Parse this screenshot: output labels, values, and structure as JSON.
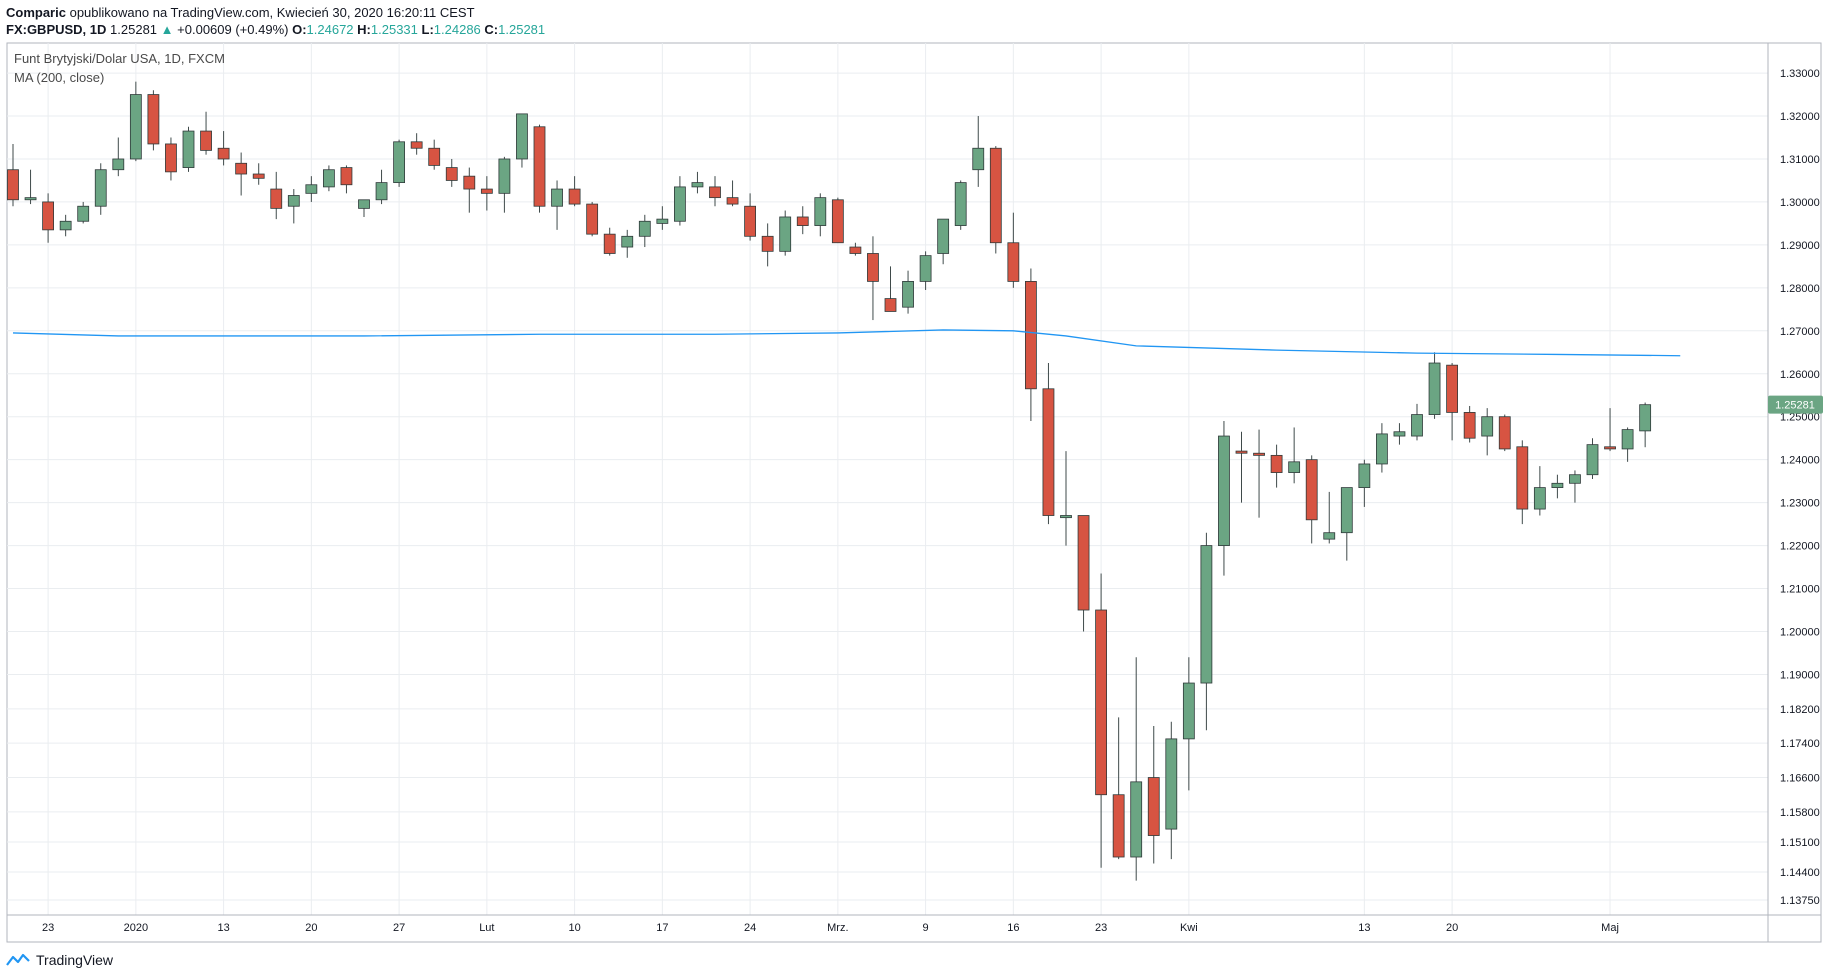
{
  "header": {
    "publisher": "Comparic",
    "published_text": "opublikowano na TradingView.com, Kwiecień 30, 2020 16:20:11 CEST",
    "symbol": "FX:GBPUSD, 1D",
    "last": "1.25281",
    "change_arrow": "▲",
    "change": "+0.00609 (+0.49%)",
    "o_label": "O:",
    "o_value": "1.24672",
    "h_label": "H:",
    "h_value": "1.25331",
    "l_label": "L:",
    "l_value": "1.24286",
    "c_label": "C:",
    "c_value": "1.25281"
  },
  "footer": {
    "brand": "TradingView"
  },
  "colors": {
    "up": "#6ba583",
    "down": "#d75442",
    "ma": "#2196f3",
    "grid": "#eaedf0",
    "price_tag": "#6ba583"
  },
  "chart_data": {
    "type": "candlestick",
    "title": "Funt Brytyjski/Dolar USA, 1D, FXCM",
    "indicator": "MA (200, close)",
    "ylim": [
      1.134,
      1.337
    ],
    "y_ticks": [
      1.33,
      1.32,
      1.31,
      1.3,
      1.29,
      1.28,
      1.27,
      1.26,
      1.25,
      1.24,
      1.23,
      1.22,
      1.21,
      1.2,
      1.19,
      1.182,
      1.174,
      1.166,
      1.158,
      1.151,
      1.144,
      1.1375
    ],
    "y_tick_labels": [
      "1.33000",
      "1.32000",
      "1.31000",
      "1.30000",
      "1.29000",
      "1.28000",
      "1.27000",
      "1.26000",
      "1.25000",
      "1.24000",
      "1.23000",
      "1.22000",
      "1.21000",
      "1.20000",
      "1.19000",
      "1.18200",
      "1.17400",
      "1.16600",
      "1.15800",
      "1.15100",
      "1.14400",
      "1.13750"
    ],
    "x_ticks": [
      {
        "label": "23",
        "index": 2
      },
      {
        "label": "2020",
        "index": 7
      },
      {
        "label": "13",
        "index": 12
      },
      {
        "label": "20",
        "index": 17
      },
      {
        "label": "27",
        "index": 22
      },
      {
        "label": "Lut",
        "index": 27
      },
      {
        "label": "10",
        "index": 32
      },
      {
        "label": "17",
        "index": 37
      },
      {
        "label": "24",
        "index": 42
      },
      {
        "label": "Mrz.",
        "index": 47
      },
      {
        "label": "9",
        "index": 52
      },
      {
        "label": "16",
        "index": 57
      },
      {
        "label": "23",
        "index": 62
      },
      {
        "label": "Kwi",
        "index": 67
      },
      {
        "label": "13",
        "index": 77
      },
      {
        "label": "20",
        "index": 82
      },
      {
        "label": "Maj",
        "index": 91
      }
    ],
    "last_price_label": "1.25281",
    "last_price": 1.25281,
    "candles": [
      [
        1.3075,
        1.3135,
        1.299,
        1.3005
      ],
      [
        1.3005,
        1.3075,
        1.2995,
        1.301
      ],
      [
        1.3,
        1.302,
        1.2905,
        1.2935
      ],
      [
        1.2935,
        1.297,
        1.292,
        1.2955
      ],
      [
        1.2955,
        1.3,
        1.295,
        1.299
      ],
      [
        1.299,
        1.309,
        1.297,
        1.3075
      ],
      [
        1.3075,
        1.315,
        1.306,
        1.31
      ],
      [
        1.31,
        1.328,
        1.3095,
        1.325
      ],
      [
        1.325,
        1.326,
        1.312,
        1.3135
      ],
      [
        1.3135,
        1.315,
        1.305,
        1.307
      ],
      [
        1.308,
        1.3175,
        1.307,
        1.3165
      ],
      [
        1.3165,
        1.321,
        1.311,
        1.312
      ],
      [
        1.3125,
        1.3165,
        1.3085,
        1.31
      ],
      [
        1.309,
        1.3115,
        1.3015,
        1.3065
      ],
      [
        1.3065,
        1.309,
        1.304,
        1.3055
      ],
      [
        1.303,
        1.307,
        1.296,
        1.2985
      ],
      [
        1.299,
        1.303,
        1.295,
        1.3015
      ],
      [
        1.302,
        1.306,
        1.3,
        1.304
      ],
      [
        1.3035,
        1.3085,
        1.3025,
        1.3075
      ],
      [
        1.308,
        1.3085,
        1.302,
        1.304
      ],
      [
        1.2985,
        1.3005,
        1.2965,
        1.3005
      ],
      [
        1.3005,
        1.3075,
        1.2995,
        1.3045
      ],
      [
        1.3045,
        1.3145,
        1.3035,
        1.314
      ],
      [
        1.314,
        1.316,
        1.311,
        1.3125
      ],
      [
        1.3125,
        1.3145,
        1.3075,
        1.3085
      ],
      [
        1.308,
        1.31,
        1.3035,
        1.305
      ],
      [
        1.306,
        1.308,
        1.2975,
        1.303
      ],
      [
        1.303,
        1.306,
        1.298,
        1.302
      ],
      [
        1.302,
        1.3105,
        1.2975,
        1.31
      ],
      [
        1.31,
        1.3205,
        1.308,
        1.3205
      ],
      [
        1.3175,
        1.318,
        1.2975,
        1.299
      ],
      [
        1.299,
        1.305,
        1.2935,
        1.303
      ],
      [
        1.303,
        1.306,
        1.299,
        1.2995
      ],
      [
        1.2995,
        1.3,
        1.292,
        1.2925
      ],
      [
        1.2925,
        1.294,
        1.2875,
        1.288
      ],
      [
        1.2895,
        1.2935,
        1.287,
        1.292
      ],
      [
        1.292,
        1.297,
        1.2895,
        1.2955
      ],
      [
        1.295,
        1.299,
        1.2935,
        1.296
      ],
      [
        1.2955,
        1.306,
        1.2945,
        1.3035
      ],
      [
        1.3035,
        1.307,
        1.302,
        1.3045
      ],
      [
        1.3035,
        1.306,
        1.299,
        1.301
      ],
      [
        1.301,
        1.305,
        1.299,
        1.2995
      ],
      [
        1.299,
        1.302,
        1.291,
        1.292
      ],
      [
        1.292,
        1.295,
        1.285,
        1.2885
      ],
      [
        1.2885,
        1.298,
        1.2875,
        1.2965
      ],
      [
        1.2965,
        1.299,
        1.2925,
        1.2945
      ],
      [
        1.2945,
        1.302,
        1.292,
        1.301
      ],
      [
        1.3005,
        1.301,
        1.2905,
        1.2905
      ],
      [
        1.2895,
        1.2905,
        1.2875,
        1.288
      ],
      [
        1.288,
        1.292,
        1.2725,
        1.2815
      ],
      [
        1.2775,
        1.285,
        1.2745,
        1.2745
      ],
      [
        1.2755,
        1.284,
        1.274,
        1.2815
      ],
      [
        1.2815,
        1.2885,
        1.2795,
        1.2875
      ],
      [
        1.288,
        1.296,
        1.2855,
        1.296
      ],
      [
        1.2945,
        1.305,
        1.2935,
        1.3045
      ],
      [
        1.3075,
        1.32,
        1.3035,
        1.3125
      ],
      [
        1.3125,
        1.313,
        1.288,
        1.2905
      ],
      [
        1.2905,
        1.2975,
        1.28,
        1.2815
      ],
      [
        1.2815,
        1.2845,
        1.249,
        1.2565
      ],
      [
        1.2565,
        1.2625,
        1.225,
        1.227
      ],
      [
        1.2265,
        1.242,
        1.22,
        1.227
      ],
      [
        1.227,
        1.227,
        1.2,
        1.205
      ],
      [
        1.205,
        1.2135,
        1.145,
        1.162
      ],
      [
        1.162,
        1.18,
        1.147,
        1.1475
      ],
      [
        1.1475,
        1.194,
        1.142,
        1.165
      ],
      [
        1.166,
        1.178,
        1.146,
        1.1525
      ],
      [
        1.154,
        1.179,
        1.147,
        1.175
      ],
      [
        1.175,
        1.194,
        1.163,
        1.188
      ],
      [
        1.188,
        1.223,
        1.177,
        1.22
      ],
      [
        1.22,
        1.249,
        1.213,
        1.2455
      ],
      [
        1.242,
        1.2465,
        1.23,
        1.2415
      ],
      [
        1.2415,
        1.247,
        1.2265,
        1.241
      ],
      [
        1.241,
        1.2435,
        1.2335,
        1.237
      ],
      [
        1.237,
        1.2475,
        1.2345,
        1.2395
      ],
      [
        1.24,
        1.241,
        1.2205,
        1.226
      ],
      [
        1.2215,
        1.2325,
        1.2205,
        1.223
      ],
      [
        1.223,
        1.233,
        1.2165,
        1.2335
      ],
      [
        1.2335,
        1.24,
        1.229,
        1.239
      ],
      [
        1.239,
        1.2485,
        1.237,
        1.246
      ],
      [
        1.2455,
        1.2485,
        1.2435,
        1.2465
      ],
      [
        1.2455,
        1.253,
        1.2445,
        1.2505
      ],
      [
        1.2505,
        1.265,
        1.2495,
        1.2625
      ],
      [
        1.262,
        1.2625,
        1.2445,
        1.251
      ],
      [
        1.251,
        1.2525,
        1.244,
        1.245
      ],
      [
        1.2455,
        1.252,
        1.241,
        1.25
      ],
      [
        1.25,
        1.2505,
        1.242,
        1.2425
      ],
      [
        1.243,
        1.2445,
        1.225,
        1.2285
      ],
      [
        1.2285,
        1.2385,
        1.227,
        1.2335
      ],
      [
        1.2335,
        1.2365,
        1.231,
        1.2345
      ],
      [
        1.2345,
        1.2375,
        1.23,
        1.2365
      ],
      [
        1.2365,
        1.245,
        1.2355,
        1.2435
      ],
      [
        1.243,
        1.252,
        1.242,
        1.2425
      ],
      [
        1.2425,
        1.2475,
        1.2395,
        1.247
      ],
      [
        1.2467,
        1.2533,
        1.2429,
        1.2528
      ]
    ],
    "ma200": [
      [
        0,
        1.2695
      ],
      [
        6,
        1.2688
      ],
      [
        12,
        1.2688
      ],
      [
        20,
        1.2688
      ],
      [
        30,
        1.2692
      ],
      [
        40,
        1.2692
      ],
      [
        47,
        1.2695
      ],
      [
        53,
        1.2702
      ],
      [
        57,
        1.27
      ],
      [
        60,
        1.2688
      ],
      [
        64,
        1.2665
      ],
      [
        72,
        1.2655
      ],
      [
        80,
        1.2648
      ],
      [
        88,
        1.2645
      ],
      [
        95,
        1.2642
      ]
    ]
  }
}
